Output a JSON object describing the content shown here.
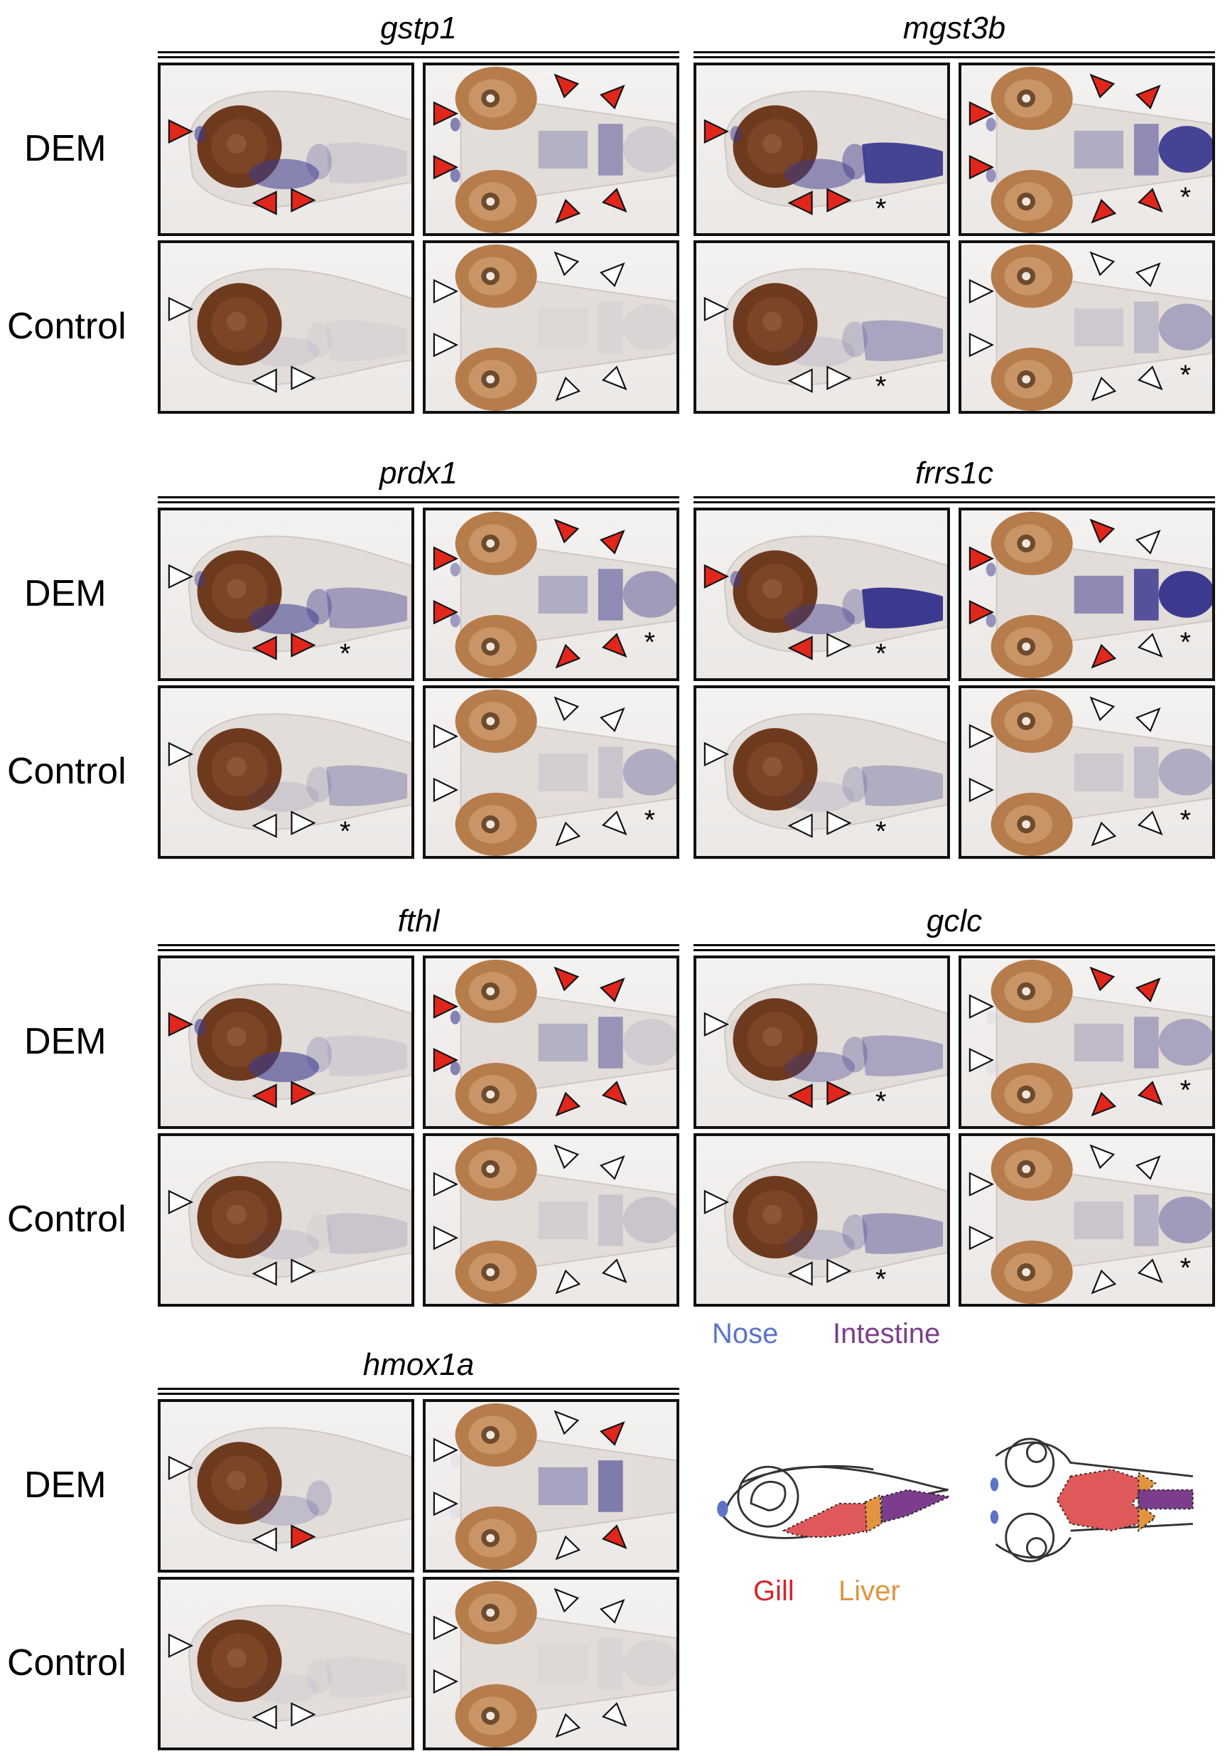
{
  "row_labels": {
    "treated": "DEM",
    "control": "Control"
  },
  "genes": [
    "gstp1",
    "mgst3b",
    "prdx1",
    "frrs1c",
    "fthl",
    "gclc",
    "hmox1a"
  ],
  "legend": {
    "nose": "Nose",
    "intestine": "Intestine",
    "gill": "Gill",
    "liver": "Liver"
  },
  "colors": {
    "stain": "#3c3a8f",
    "eye": "#6e3a1e",
    "yolk_eye_dorsal": "#b67c4c",
    "arrow_red": "#e1261c",
    "nose": "#5b74c8",
    "intestine": "#7c3e8c",
    "gill": "#e0595a",
    "liver": "#e39440"
  },
  "marks": {
    "asterisk": "*"
  }
}
